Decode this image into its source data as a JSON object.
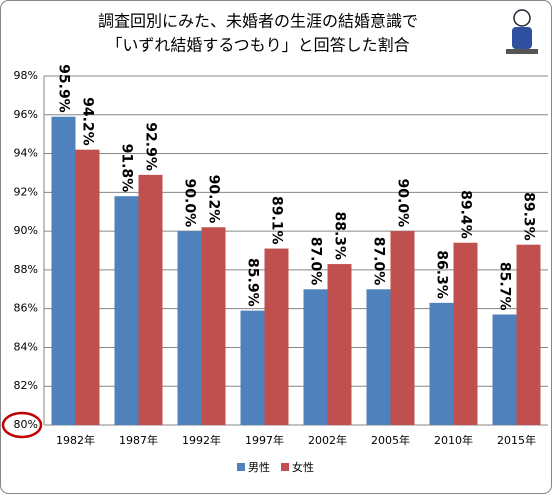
{
  "chart_data": {
    "type": "bar",
    "title": [
      "調査回別にみた、未婚者の生涯の結婚意識で",
      "「いずれ結婚するつもり」と回答した割合"
    ],
    "categories": [
      "1982年",
      "1987年",
      "1992年",
      "1997年",
      "2002年",
      "2005年",
      "2010年",
      "2015年"
    ],
    "series": [
      {
        "name": "男性",
        "color": "#4f81bd",
        "values": [
          95.9,
          91.8,
          90.0,
          85.9,
          87.0,
          87.0,
          86.3,
          85.7
        ],
        "value_labels": [
          "95.9%",
          "91.8%",
          "90.0%",
          "85.9%",
          "87.0%",
          "87.0%",
          "86.3%",
          "85.7%"
        ]
      },
      {
        "name": "女性",
        "color": "#c0504d",
        "values": [
          94.2,
          92.9,
          90.2,
          89.1,
          88.3,
          90.0,
          89.4,
          89.3
        ],
        "value_labels": [
          "94.2%",
          "92.9%",
          "90.2%",
          "89.1%",
          "88.3%",
          "90.0%",
          "89.4%",
          "89.3%"
        ]
      }
    ],
    "ylim": [
      80,
      98
    ],
    "yticks": [
      {
        "value": 80,
        "label": "80%"
      },
      {
        "value": 82,
        "label": "82%"
      },
      {
        "value": 84,
        "label": "84%"
      },
      {
        "value": 86,
        "label": "86%"
      },
      {
        "value": 88,
        "label": "88%"
      },
      {
        "value": 90,
        "label": "90%"
      },
      {
        "value": 92,
        "label": "92%"
      },
      {
        "value": 94,
        "label": "94%"
      },
      {
        "value": 96,
        "label": "96%"
      },
      {
        "value": 98,
        "label": "98%"
      }
    ],
    "grid": true
  }
}
